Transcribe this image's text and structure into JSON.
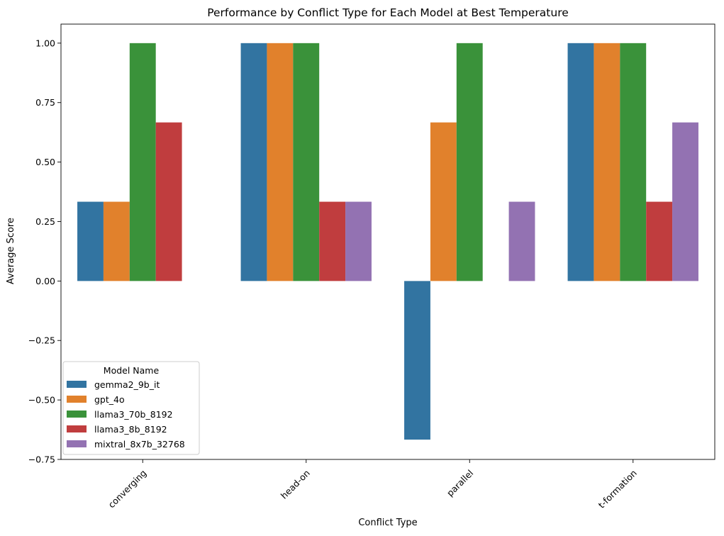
{
  "chart_data": {
    "type": "bar",
    "title": "Performance by Conflict Type for Each Model at Best Temperature",
    "xlabel": "Conflict Type",
    "ylabel": "Average Score",
    "categories": [
      "converging",
      "head-on",
      "parallel",
      "t-formation"
    ],
    "ylim": [
      -0.75,
      1.08
    ],
    "yticks": [
      -0.75,
      -0.5,
      -0.25,
      0.0,
      0.25,
      0.5,
      0.75,
      1.0
    ],
    "ytick_labels": [
      "−0.75",
      "−0.50",
      "−0.25",
      "0.00",
      "0.25",
      "0.50",
      "0.75",
      "1.00"
    ],
    "grid": false,
    "legend": {
      "title": "Model Name",
      "placement": "lower-left"
    },
    "series": [
      {
        "name": "gemma2_9b_it",
        "color": "#3274a1",
        "values": [
          0.3333,
          1.0,
          -0.6667,
          1.0
        ]
      },
      {
        "name": "gpt_4o",
        "color": "#e1812c",
        "values": [
          0.3333,
          1.0,
          0.6667,
          1.0
        ]
      },
      {
        "name": "llama3_70b_8192",
        "color": "#3a923a",
        "values": [
          1.0,
          1.0,
          1.0,
          1.0
        ]
      },
      {
        "name": "llama3_8b_8192",
        "color": "#c03d3e",
        "values": [
          0.6667,
          0.3333,
          0.0,
          0.3333
        ]
      },
      {
        "name": "mixtral_8x7b_32768",
        "color": "#9372b2",
        "values": [
          0.0,
          0.3333,
          0.3333,
          0.6667
        ]
      }
    ]
  }
}
